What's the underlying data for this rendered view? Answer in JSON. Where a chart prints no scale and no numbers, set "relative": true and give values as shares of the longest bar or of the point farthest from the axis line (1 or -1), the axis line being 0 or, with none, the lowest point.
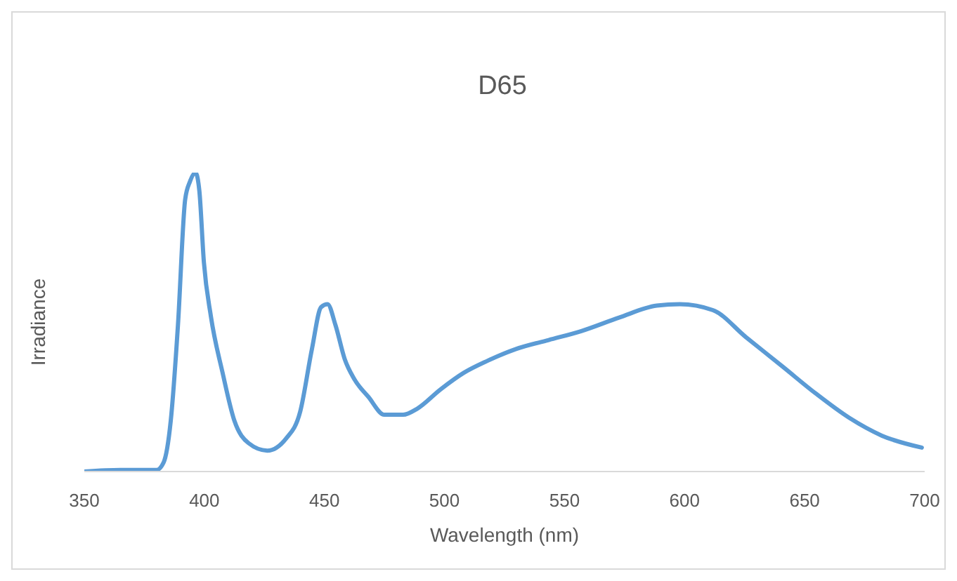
{
  "chart_data": {
    "type": "line",
    "title": "D65",
    "xlabel": "Wavelength (nm)",
    "ylabel": "Irradiance",
    "relative": true,
    "x": [
      350,
      365,
      380,
      383,
      386,
      389,
      392,
      394,
      396.3,
      397.9,
      399.8,
      402.7,
      407.6,
      412.5,
      418.4,
      426.2,
      434,
      439.9,
      444.8,
      448.6,
      451.3,
      454.6,
      458.5,
      462.4,
      468.3,
      475,
      482.8,
      488.6,
      498.4,
      508,
      517.8,
      529.8,
      543.4,
      557,
      572.7,
      588.4,
      598,
      611.8,
      625.5,
      641,
      654.8,
      668.5,
      682.2,
      698.8
    ],
    "series": [
      {
        "color": "#5b9bd5",
        "values": [
          0,
          0.005,
          0.005,
          0.03,
          0.17,
          0.49,
          0.91,
          0.97,
          1,
          0.94,
          0.7,
          0.52,
          0.33,
          0.17,
          0.095,
          0.07,
          0.11,
          0.2,
          0.41,
          0.55,
          0.56,
          0.49,
          0.375,
          0.31,
          0.25,
          0.19,
          0.19,
          0.21,
          0.275,
          0.33,
          0.37,
          0.41,
          0.44,
          0.47,
          0.515,
          0.555,
          0.56,
          0.54,
          0.45,
          0.35,
          0.26,
          0.18,
          0.12,
          0.08
        ]
      }
    ],
    "xlim": [
      350,
      700
    ],
    "xticks": [
      350,
      400,
      450,
      500,
      550,
      600,
      650,
      700
    ],
    "grid": false,
    "legend": false,
    "marker": "none",
    "line_style": "solid"
  }
}
